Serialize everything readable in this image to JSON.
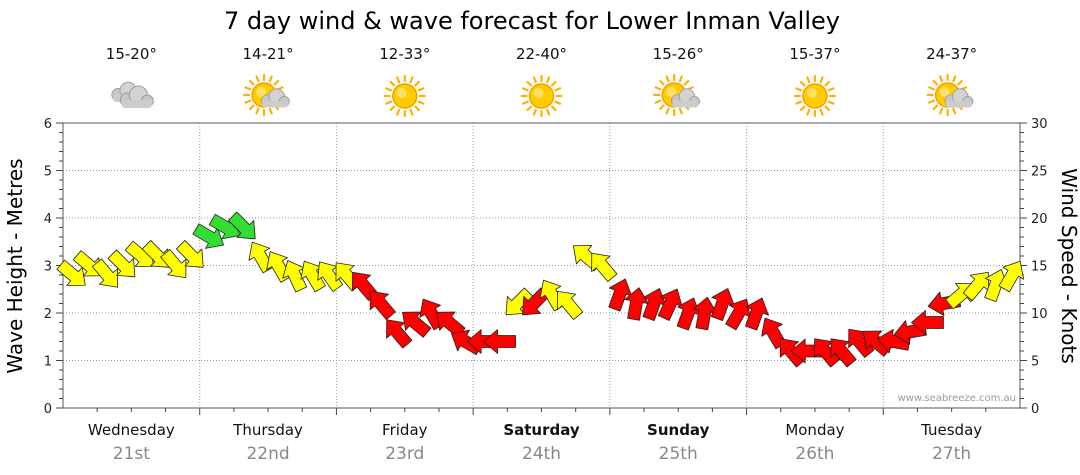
{
  "chart_data": {
    "type": "line",
    "title": "7 day wind & wave forecast for Lower Inman Valley",
    "ylabel_left": "Wave Height - Metres",
    "ylabel_right": "Wind Speed - Knots",
    "ylim_left": [
      0,
      6
    ],
    "ylim_right": [
      0,
      30
    ],
    "yticks_left": [
      "0",
      "1",
      "2",
      "3",
      "4",
      "5",
      "6"
    ],
    "yticks_right": [
      "0",
      "5",
      "10",
      "15",
      "20",
      "25",
      "30"
    ],
    "grid": true,
    "credit": "www.seabreeze.com.au",
    "days": [
      {
        "name": "Wednesday",
        "date": "21st",
        "temp": "15-20°",
        "weather_icon": "cloudy-icon",
        "bold": false
      },
      {
        "name": "Thursday",
        "date": "22nd",
        "temp": "14-21°",
        "weather_icon": "partly-cloudy-icon",
        "bold": false
      },
      {
        "name": "Friday",
        "date": "23rd",
        "temp": "12-33°",
        "weather_icon": "sunny-icon",
        "bold": false
      },
      {
        "name": "Saturday",
        "date": "24th",
        "temp": "22-40°",
        "weather_icon": "sunny-icon",
        "bold": true
      },
      {
        "name": "Sunday",
        "date": "25th",
        "temp": "15-26°",
        "weather_icon": "partly-cloudy-icon",
        "bold": true
      },
      {
        "name": "Monday",
        "date": "26th",
        "temp": "15-37°",
        "weather_icon": "sunny-icon",
        "bold": false
      },
      {
        "name": "Tuesday",
        "date": "27th",
        "temp": "24-37°",
        "weather_icon": "partly-cloudy-icon",
        "bold": false
      }
    ],
    "wind_colors": {
      "light": "#ffff00",
      "moderate": "#33dd33",
      "strong": "#ff0000"
    },
    "wind": {
      "x_days": [
        0.0,
        0.12,
        0.25,
        0.37,
        0.5,
        0.62,
        0.75,
        0.87,
        1.0,
        1.12,
        1.25,
        1.37,
        1.5,
        1.62,
        1.75,
        1.87,
        2.0,
        2.12,
        2.25,
        2.37,
        2.5,
        2.62,
        2.75,
        2.87,
        3.0,
        3.12,
        3.25,
        3.37,
        3.5,
        3.62,
        3.75,
        3.87,
        4.0,
        4.12,
        4.25,
        4.37,
        4.5,
        4.62,
        4.75,
        4.87,
        5.0,
        5.12,
        5.25,
        5.37,
        5.5,
        5.62,
        5.75,
        5.87,
        6.0,
        6.12,
        6.25,
        6.37,
        6.5,
        6.62,
        6.75,
        6.87
      ],
      "knots": [
        14,
        15,
        14,
        15,
        16,
        16,
        15,
        16,
        18,
        19,
        19,
        16,
        15,
        14,
        14,
        14,
        14,
        13,
        11,
        8,
        9,
        10,
        9,
        7,
        7,
        7,
        11,
        11,
        12,
        11,
        16,
        15,
        12,
        11,
        11,
        11,
        10,
        10,
        11,
        10,
        10,
        8,
        6,
        6,
        6,
        6,
        7,
        7,
        7,
        8,
        9,
        11,
        12,
        13,
        13,
        14
      ],
      "dir_deg": [
        310,
        310,
        320,
        315,
        310,
        315,
        320,
        315,
        300,
        300,
        315,
        150,
        150,
        155,
        150,
        145,
        140,
        140,
        140,
        140,
        130,
        150,
        130,
        120,
        90,
        90,
        45,
        45,
        150,
        140,
        130,
        140,
        200,
        190,
        200,
        205,
        200,
        190,
        200,
        210,
        200,
        150,
        140,
        90,
        140,
        140,
        140,
        130,
        100,
        80,
        90,
        80,
        230,
        220,
        200,
        210
      ],
      "strength": [
        "light",
        "light",
        "light",
        "light",
        "light",
        "light",
        "light",
        "light",
        "moderate",
        "moderate",
        "moderate",
        "light",
        "light",
        "light",
        "light",
        "light",
        "light",
        "strong",
        "strong",
        "strong",
        "strong",
        "strong",
        "strong",
        "strong",
        "strong",
        "strong",
        "light",
        "strong",
        "light",
        "light",
        "light",
        "light",
        "strong",
        "strong",
        "strong",
        "strong",
        "strong",
        "strong",
        "strong",
        "strong",
        "strong",
        "strong",
        "strong",
        "strong",
        "strong",
        "strong",
        "strong",
        "strong",
        "strong",
        "strong",
        "strong",
        "strong",
        "light",
        "light",
        "light",
        "light"
      ]
    }
  }
}
